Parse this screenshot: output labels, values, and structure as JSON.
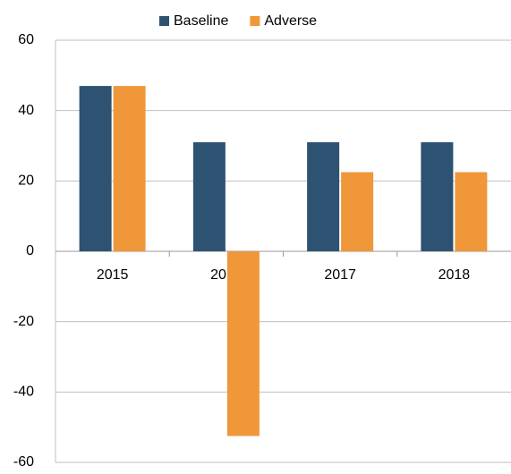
{
  "chart_data": {
    "type": "bar",
    "categories": [
      "2015",
      "2016",
      "2017",
      "2018"
    ],
    "series": [
      {
        "name": "Baseline",
        "color": "#2e5272",
        "values": [
          47,
          31,
          31,
          31
        ]
      },
      {
        "name": "Adverse",
        "color": "#f0973a",
        "values": [
          47,
          -52.5,
          22.5,
          22.5
        ]
      }
    ],
    "ylim": [
      -60,
      60
    ],
    "yticks": [
      -60,
      -40,
      -20,
      0,
      20,
      40,
      60
    ],
    "grid": true,
    "legend": "top"
  }
}
